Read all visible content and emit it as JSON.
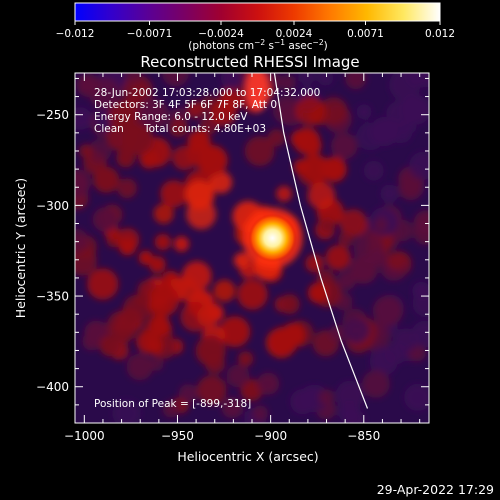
{
  "chart_data": {
    "type": "heatmap",
    "title": "Reconstructed RHESSI Image",
    "xlabel": "Heliocentric X (arcsec)",
    "ylabel": "Heliocentric Y (arcsec)",
    "xlim": [
      -1005,
      -815
    ],
    "ylim": [
      -420,
      -227
    ],
    "x_ticks": [
      -1000,
      -950,
      -900,
      -850
    ],
    "x_tick_labels": [
      "−1000",
      "−950",
      "−900",
      "−850"
    ],
    "y_ticks": [
      -250,
      -300,
      -350,
      -400
    ],
    "y_tick_labels": [
      "−250",
      "−300",
      "−350",
      "−400"
    ],
    "colorbar": {
      "min": -0.012,
      "max": 0.012,
      "ticks": [
        -0.012,
        -0.0071,
        -0.0024,
        0.0024,
        0.0071,
        0.012
      ],
      "tick_labels": [
        "−0.012",
        "−0.0071",
        "−0.0024",
        "0.0024",
        "0.0071",
        "0.012"
      ],
      "unit_base": "(photons cm",
      "unit_exp1": "−2",
      "unit_mid": " s",
      "unit_exp2": "−1",
      "unit_end": " asec",
      "unit_exp3": "−2",
      "unit_close": ")",
      "colormap": [
        "#0000ff",
        "#3300cc",
        "#5a0096",
        "#7a0064",
        "#a00030",
        "#cc1010",
        "#ee3a00",
        "#ff7a00",
        "#ffb800",
        "#ffe860",
        "#ffffff"
      ]
    },
    "peak": {
      "x": -899,
      "y": -318
    },
    "limb_curve": [
      [
        -898,
        -227
      ],
      [
        -893,
        -260
      ],
      [
        -884,
        -300
      ],
      [
        -873,
        -340
      ],
      [
        -862,
        -375
      ],
      [
        -848,
        -412
      ]
    ],
    "grid": false
  },
  "annotations": {
    "line1": "28-Jun-2002 17:03:28.000 to 17:04:32.000",
    "line2": "Detectors: 3F 4F 5F 6F 7F 8F, Att 0",
    "line3": "Energy Range: 6.0 - 12.0 keV",
    "line4_a": "Clean",
    "line4_b": "Total counts: 4.80E+03",
    "peak_text": "Position of Peak = [-899,-318]"
  },
  "footer": {
    "timestamp": "29-Apr-2022 17:29"
  }
}
